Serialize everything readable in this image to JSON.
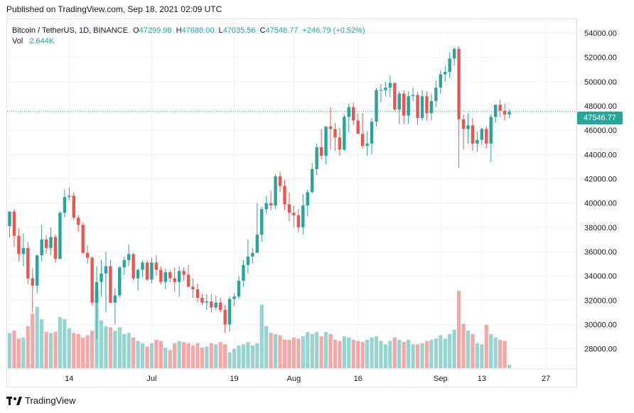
{
  "header": {
    "published": "Published on TradingView.com, Sep 18, 2021 02:09 UTC"
  },
  "legend": {
    "symbol": "Bitcoin / TetherUS, 1D, BINANCE",
    "o_label": "O",
    "o_value": "47299.98",
    "h_label": "H",
    "h_value": "47688.00",
    "l_label": "L",
    "l_value": "47035.56",
    "c_label": "C",
    "c_value": "47546.77",
    "change": "+246.79 (+0.52%)",
    "vol_label": "Vol",
    "vol_value": "2.644K"
  },
  "footer": {
    "brand": "TradingView"
  },
  "colors": {
    "up": "#26a69a",
    "down": "#ef5350",
    "up_vol": "#98d4cf",
    "down_vol": "#f6a7a5",
    "grid": "#f0f3fa"
  },
  "chart_data": {
    "type": "candlestick",
    "y_axis": {
      "ticks": [
        28000,
        30000,
        32000,
        34000,
        36000,
        38000,
        40000,
        42000,
        44000,
        46000,
        48000,
        50000,
        52000,
        54000
      ],
      "tick_labels": [
        "28000.00",
        "30000.00",
        "32000.00",
        "34000.00",
        "36000.00",
        "38000.00",
        "40000.00",
        "42000.00",
        "44000.00",
        "46000.00",
        "48000.00",
        "50000.00",
        "52000.00",
        "54000.00"
      ],
      "ylim": [
        26400,
        55200
      ]
    },
    "x_axis": {
      "tick_labels": [
        "14",
        "Jul",
        "19",
        "Aug",
        "16",
        "Sep",
        "13",
        "27"
      ],
      "tick_indices": [
        13,
        31,
        49,
        62,
        76,
        94,
        103,
        117
      ]
    },
    "last_price_label": "47546.77",
    "last_price": 47546.77,
    "candles": [
      {
        "o": 38100,
        "h": 39300,
        "l": 37200,
        "c": 39300,
        "v": 31
      },
      {
        "o": 39300,
        "h": 39500,
        "l": 36400,
        "c": 37300,
        "v": 33
      },
      {
        "o": 37300,
        "h": 37900,
        "l": 35200,
        "c": 35800,
        "v": 26
      },
      {
        "o": 35800,
        "h": 37500,
        "l": 34800,
        "c": 36300,
        "v": 27
      },
      {
        "o": 36300,
        "h": 36800,
        "l": 33300,
        "c": 33800,
        "v": 37
      },
      {
        "o": 33800,
        "h": 34600,
        "l": 31000,
        "c": 33200,
        "v": 48
      },
      {
        "o": 33200,
        "h": 35700,
        "l": 32600,
        "c": 35700,
        "v": 54
      },
      {
        "o": 35700,
        "h": 38200,
        "l": 35200,
        "c": 37000,
        "v": 43
      },
      {
        "o": 37000,
        "h": 37400,
        "l": 35800,
        "c": 36300,
        "v": 32
      },
      {
        "o": 36300,
        "h": 38000,
        "l": 35700,
        "c": 37200,
        "v": 31
      },
      {
        "o": 37200,
        "h": 37400,
        "l": 35100,
        "c": 35400,
        "v": 32
      },
      {
        "o": 35400,
        "h": 39300,
        "l": 35400,
        "c": 39200,
        "v": 45
      },
      {
        "o": 39200,
        "h": 41100,
        "l": 38800,
        "c": 40500,
        "v": 43
      },
      {
        "o": 40500,
        "h": 41300,
        "l": 40200,
        "c": 40600,
        "v": 35
      },
      {
        "o": 40600,
        "h": 40900,
        "l": 38600,
        "c": 38800,
        "v": 31
      },
      {
        "o": 38800,
        "h": 39000,
        "l": 37600,
        "c": 38200,
        "v": 30
      },
      {
        "o": 38200,
        "h": 38400,
        "l": 35800,
        "c": 35900,
        "v": 27
      },
      {
        "o": 35900,
        "h": 36500,
        "l": 35000,
        "c": 35500,
        "v": 29
      },
      {
        "o": 35500,
        "h": 35600,
        "l": 31600,
        "c": 31800,
        "v": 33
      },
      {
        "o": 31800,
        "h": 34800,
        "l": 28800,
        "c": 33500,
        "v": 68
      },
      {
        "o": 33500,
        "h": 35300,
        "l": 32300,
        "c": 34200,
        "v": 42
      },
      {
        "o": 34200,
        "h": 36000,
        "l": 31000,
        "c": 34800,
        "v": 37
      },
      {
        "o": 34800,
        "h": 35300,
        "l": 31800,
        "c": 31800,
        "v": 36
      },
      {
        "o": 31800,
        "h": 33000,
        "l": 30000,
        "c": 32400,
        "v": 33
      },
      {
        "o": 32400,
        "h": 34800,
        "l": 32200,
        "c": 34700,
        "v": 36
      },
      {
        "o": 34700,
        "h": 35600,
        "l": 34100,
        "c": 35300,
        "v": 30
      },
      {
        "o": 35300,
        "h": 36600,
        "l": 34800,
        "c": 35800,
        "v": 31
      },
      {
        "o": 35800,
        "h": 35900,
        "l": 33600,
        "c": 33800,
        "v": 27
      },
      {
        "o": 33800,
        "h": 34600,
        "l": 32800,
        "c": 34500,
        "v": 24
      },
      {
        "o": 34500,
        "h": 35300,
        "l": 33900,
        "c": 35100,
        "v": 22
      },
      {
        "o": 35100,
        "h": 35300,
        "l": 33600,
        "c": 33700,
        "v": 19
      },
      {
        "o": 33700,
        "h": 35500,
        "l": 33400,
        "c": 35100,
        "v": 22
      },
      {
        "o": 35100,
        "h": 35700,
        "l": 34000,
        "c": 34500,
        "v": 25
      },
      {
        "o": 34500,
        "h": 34800,
        "l": 33300,
        "c": 33500,
        "v": 24
      },
      {
        "o": 33500,
        "h": 34600,
        "l": 32900,
        "c": 34300,
        "v": 18
      },
      {
        "o": 34300,
        "h": 34500,
        "l": 33500,
        "c": 33800,
        "v": 16
      },
      {
        "o": 33800,
        "h": 34700,
        "l": 32700,
        "c": 33500,
        "v": 22
      },
      {
        "o": 33500,
        "h": 34800,
        "l": 32300,
        "c": 34400,
        "v": 24
      },
      {
        "o": 34400,
        "h": 34700,
        "l": 33600,
        "c": 34100,
        "v": 23
      },
      {
        "o": 34100,
        "h": 34900,
        "l": 33300,
        "c": 33100,
        "v": 22
      },
      {
        "o": 33100,
        "h": 33800,
        "l": 32200,
        "c": 32900,
        "v": 20
      },
      {
        "o": 32900,
        "h": 33400,
        "l": 31800,
        "c": 32200,
        "v": 22
      },
      {
        "o": 32200,
        "h": 32500,
        "l": 31600,
        "c": 31800,
        "v": 18
      },
      {
        "o": 31800,
        "h": 32500,
        "l": 31200,
        "c": 31900,
        "v": 19
      },
      {
        "o": 31900,
        "h": 32500,
        "l": 31000,
        "c": 31400,
        "v": 22
      },
      {
        "o": 31400,
        "h": 32400,
        "l": 31200,
        "c": 31800,
        "v": 21
      },
      {
        "o": 31800,
        "h": 32200,
        "l": 31000,
        "c": 31200,
        "v": 23
      },
      {
        "o": 31200,
        "h": 31600,
        "l": 29300,
        "c": 30000,
        "v": 21
      },
      {
        "o": 30000,
        "h": 32300,
        "l": 29400,
        "c": 32100,
        "v": 14
      },
      {
        "o": 32100,
        "h": 32600,
        "l": 31500,
        "c": 32300,
        "v": 17
      },
      {
        "o": 32300,
        "h": 34000,
        "l": 32100,
        "c": 33600,
        "v": 20
      },
      {
        "o": 33600,
        "h": 35300,
        "l": 33100,
        "c": 34900,
        "v": 21
      },
      {
        "o": 34900,
        "h": 37000,
        "l": 34200,
        "c": 35600,
        "v": 23
      },
      {
        "o": 35600,
        "h": 36300,
        "l": 35000,
        "c": 35900,
        "v": 20
      },
      {
        "o": 35900,
        "h": 40000,
        "l": 35900,
        "c": 37400,
        "v": 22
      },
      {
        "o": 37400,
        "h": 39700,
        "l": 36800,
        "c": 39500,
        "v": 56
      },
      {
        "o": 39500,
        "h": 40600,
        "l": 39100,
        "c": 40000,
        "v": 37
      },
      {
        "o": 40000,
        "h": 41000,
        "l": 39400,
        "c": 39800,
        "v": 31
      },
      {
        "o": 39800,
        "h": 42400,
        "l": 39500,
        "c": 42200,
        "v": 30
      },
      {
        "o": 42200,
        "h": 42600,
        "l": 40900,
        "c": 41400,
        "v": 29
      },
      {
        "o": 41400,
        "h": 41900,
        "l": 39400,
        "c": 39900,
        "v": 25
      },
      {
        "o": 39900,
        "h": 40900,
        "l": 38500,
        "c": 39200,
        "v": 25
      },
      {
        "o": 39200,
        "h": 39800,
        "l": 38000,
        "c": 39000,
        "v": 27
      },
      {
        "o": 39000,
        "h": 39500,
        "l": 37600,
        "c": 38000,
        "v": 26
      },
      {
        "o": 38000,
        "h": 40700,
        "l": 37400,
        "c": 39800,
        "v": 28
      },
      {
        "o": 39800,
        "h": 41100,
        "l": 38900,
        "c": 40900,
        "v": 32
      },
      {
        "o": 40900,
        "h": 43300,
        "l": 40800,
        "c": 42800,
        "v": 30
      },
      {
        "o": 42800,
        "h": 44900,
        "l": 42300,
        "c": 44600,
        "v": 32
      },
      {
        "o": 44600,
        "h": 46100,
        "l": 43600,
        "c": 43900,
        "v": 28
      },
      {
        "o": 43900,
        "h": 46300,
        "l": 43200,
        "c": 46300,
        "v": 32
      },
      {
        "o": 46300,
        "h": 47900,
        "l": 44400,
        "c": 46100,
        "v": 30
      },
      {
        "o": 46100,
        "h": 46600,
        "l": 44300,
        "c": 45400,
        "v": 25
      },
      {
        "o": 45400,
        "h": 46200,
        "l": 43900,
        "c": 44400,
        "v": 24
      },
      {
        "o": 44400,
        "h": 47300,
        "l": 44300,
        "c": 47100,
        "v": 28
      },
      {
        "o": 47100,
        "h": 48200,
        "l": 45800,
        "c": 47900,
        "v": 27
      },
      {
        "o": 47900,
        "h": 48300,
        "l": 46400,
        "c": 46800,
        "v": 25
      },
      {
        "o": 46800,
        "h": 47400,
        "l": 45700,
        "c": 45700,
        "v": 24
      },
      {
        "o": 45700,
        "h": 47400,
        "l": 44500,
        "c": 44700,
        "v": 23
      },
      {
        "o": 44700,
        "h": 45900,
        "l": 43900,
        "c": 44900,
        "v": 25
      },
      {
        "o": 44900,
        "h": 47000,
        "l": 44000,
        "c": 46700,
        "v": 27
      },
      {
        "o": 46700,
        "h": 49500,
        "l": 46300,
        "c": 49300,
        "v": 28
      },
      {
        "o": 49300,
        "h": 49800,
        "l": 48300,
        "c": 49300,
        "v": 24
      },
      {
        "o": 49300,
        "h": 50000,
        "l": 48800,
        "c": 49500,
        "v": 21
      },
      {
        "o": 49500,
        "h": 50500,
        "l": 48700,
        "c": 49900,
        "v": 24
      },
      {
        "o": 49900,
        "h": 49900,
        "l": 47600,
        "c": 47700,
        "v": 27
      },
      {
        "o": 47700,
        "h": 49200,
        "l": 46500,
        "c": 49000,
        "v": 25
      },
      {
        "o": 49000,
        "h": 49300,
        "l": 46500,
        "c": 47200,
        "v": 23
      },
      {
        "o": 47200,
        "h": 49200,
        "l": 46500,
        "c": 48800,
        "v": 25
      },
      {
        "o": 48800,
        "h": 49500,
        "l": 48400,
        "c": 48900,
        "v": 21
      },
      {
        "o": 48900,
        "h": 49200,
        "l": 46400,
        "c": 47000,
        "v": 21
      },
      {
        "o": 47000,
        "h": 49300,
        "l": 46800,
        "c": 48800,
        "v": 22
      },
      {
        "o": 48800,
        "h": 49200,
        "l": 46800,
        "c": 47400,
        "v": 24
      },
      {
        "o": 47400,
        "h": 49000,
        "l": 46800,
        "c": 48400,
        "v": 25
      },
      {
        "o": 48400,
        "h": 50100,
        "l": 47900,
        "c": 49500,
        "v": 26
      },
      {
        "o": 49500,
        "h": 50900,
        "l": 49000,
        "c": 50600,
        "v": 29
      },
      {
        "o": 50600,
        "h": 51300,
        "l": 50000,
        "c": 50800,
        "v": 26
      },
      {
        "o": 50800,
        "h": 52400,
        "l": 50300,
        "c": 51900,
        "v": 30
      },
      {
        "o": 51900,
        "h": 52800,
        "l": 51300,
        "c": 52700,
        "v": 34
      },
      {
        "o": 52700,
        "h": 52900,
        "l": 42900,
        "c": 46900,
        "v": 68
      },
      {
        "o": 46900,
        "h": 47300,
        "l": 44400,
        "c": 46100,
        "v": 39
      },
      {
        "o": 46100,
        "h": 47400,
        "l": 44900,
        "c": 46400,
        "v": 33
      },
      {
        "o": 46400,
        "h": 47000,
        "l": 44300,
        "c": 44900,
        "v": 30
      },
      {
        "o": 44900,
        "h": 45900,
        "l": 44200,
        "c": 45200,
        "v": 22
      },
      {
        "o": 45200,
        "h": 46200,
        "l": 44800,
        "c": 46100,
        "v": 21
      },
      {
        "o": 46100,
        "h": 46300,
        "l": 44500,
        "c": 44900,
        "v": 38
      },
      {
        "o": 44900,
        "h": 47300,
        "l": 43400,
        "c": 47100,
        "v": 30
      },
      {
        "o": 47100,
        "h": 48100,
        "l": 46600,
        "c": 48100,
        "v": 27
      },
      {
        "o": 48100,
        "h": 48500,
        "l": 47100,
        "c": 47600,
        "v": 25
      },
      {
        "o": 47600,
        "h": 48200,
        "l": 46800,
        "c": 47300,
        "v": 24
      },
      {
        "o": 47300,
        "h": 47700,
        "l": 47000,
        "c": 47500,
        "v": 3
      }
    ]
  }
}
